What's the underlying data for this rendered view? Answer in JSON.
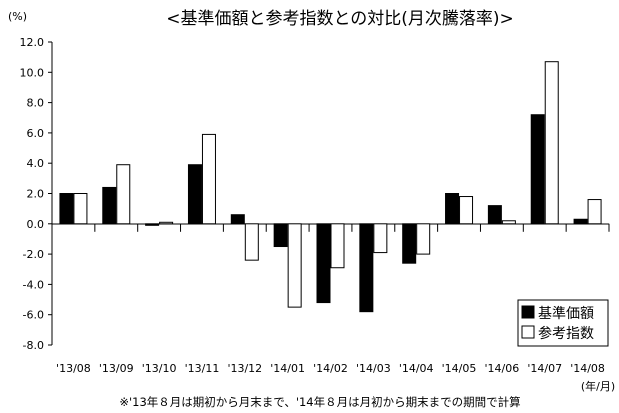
{
  "chart_data": {
    "type": "bar",
    "title": "<基準価額と参考指数との対比(月次騰落率)>",
    "ylabel": "(%)",
    "xlabel": "(年/月)",
    "ylim": [
      -8.0,
      12.0
    ],
    "yticks": [
      "12.0",
      "10.0",
      "8.0",
      "6.0",
      "4.0",
      "2.0",
      "0.0",
      "-2.0",
      "-4.0",
      "-6.0",
      "-8.0"
    ],
    "ytick_values": [
      12,
      10,
      8,
      6,
      4,
      2,
      0,
      -2,
      -4,
      -6,
      -8
    ],
    "categories": [
      "'13/08",
      "'13/09",
      "'13/10",
      "'13/11",
      "'13/12",
      "'14/01",
      "'14/02",
      "'14/03",
      "'14/04",
      "'14/05",
      "'14/06",
      "'14/07",
      "'14/08"
    ],
    "series": [
      {
        "name": "基準価額",
        "color": "#000000",
        "values": [
          2.0,
          2.4,
          -0.1,
          3.9,
          0.6,
          -1.5,
          -5.2,
          -5.8,
          -2.6,
          2.0,
          1.2,
          7.2,
          0.3
        ]
      },
      {
        "name": "参考指数",
        "color": "#ffffff",
        "values": [
          2.0,
          3.9,
          0.1,
          5.9,
          -2.4,
          -5.5,
          -2.9,
          -1.9,
          -2.0,
          1.8,
          0.2,
          10.7,
          1.6
        ]
      }
    ],
    "legend_position": "bottom-right",
    "grid": false,
    "note": "※'13年８月は期初から月末まで、'14年８月は月初から期末までの期間で計算"
  }
}
